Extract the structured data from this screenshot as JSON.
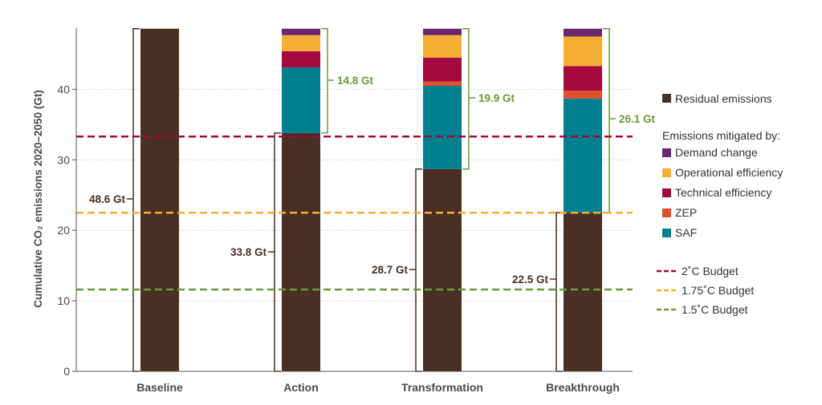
{
  "chart_data": {
    "type": "bar",
    "stacked": true,
    "categories": [
      "Baseline",
      "Action",
      "Transformation",
      "Breakthrough"
    ],
    "ylabel": "Cumulative CO₂ emissions 2020–2050 (Gt)",
    "yticks": [
      0,
      10,
      20,
      30,
      40
    ],
    "ylim": [
      0,
      48.6
    ],
    "grid": "horizontal-dotted",
    "legend_position": "right",
    "series": [
      {
        "name": "Residual emissions",
        "color": "#4a2f24",
        "values": [
          48.6,
          33.8,
          28.7,
          22.5
        ]
      },
      {
        "name": "SAF",
        "color": "#00808f",
        "values": [
          0,
          9.3,
          11.8,
          16.2
        ]
      },
      {
        "name": "ZEP",
        "color": "#e2502b",
        "values": [
          0,
          0,
          0.6,
          1.1
        ]
      },
      {
        "name": "Technical efficiency",
        "color": "#a3093f",
        "values": [
          0,
          2.3,
          3.4,
          3.5
        ]
      },
      {
        "name": "Operational efficiency",
        "color": "#f5ae33",
        "values": [
          0,
          2.3,
          3.2,
          4.2
        ]
      },
      {
        "name": "Demand change",
        "color": "#6b2670",
        "values": [
          0,
          0.9,
          0.9,
          1.1
        ]
      }
    ],
    "residual_labels": [
      "48.6 Gt",
      "33.8 Gt",
      "28.7 Gt",
      "22.5 Gt"
    ],
    "mitigation_labels": [
      "",
      "14.8 Gt",
      "19.9 Gt",
      "26.1 Gt"
    ],
    "legend_heading": "Emissions mitigated by:",
    "budgets": [
      {
        "name": "2˚C Budget",
        "value": 33.3,
        "color": "#a3093f"
      },
      {
        "name": "1.75˚C Budget",
        "value": 22.5,
        "color": "#f5ae33"
      },
      {
        "name": "1.5˚C Budget",
        "value": 11.6,
        "color": "#6a9a3c"
      }
    ]
  }
}
